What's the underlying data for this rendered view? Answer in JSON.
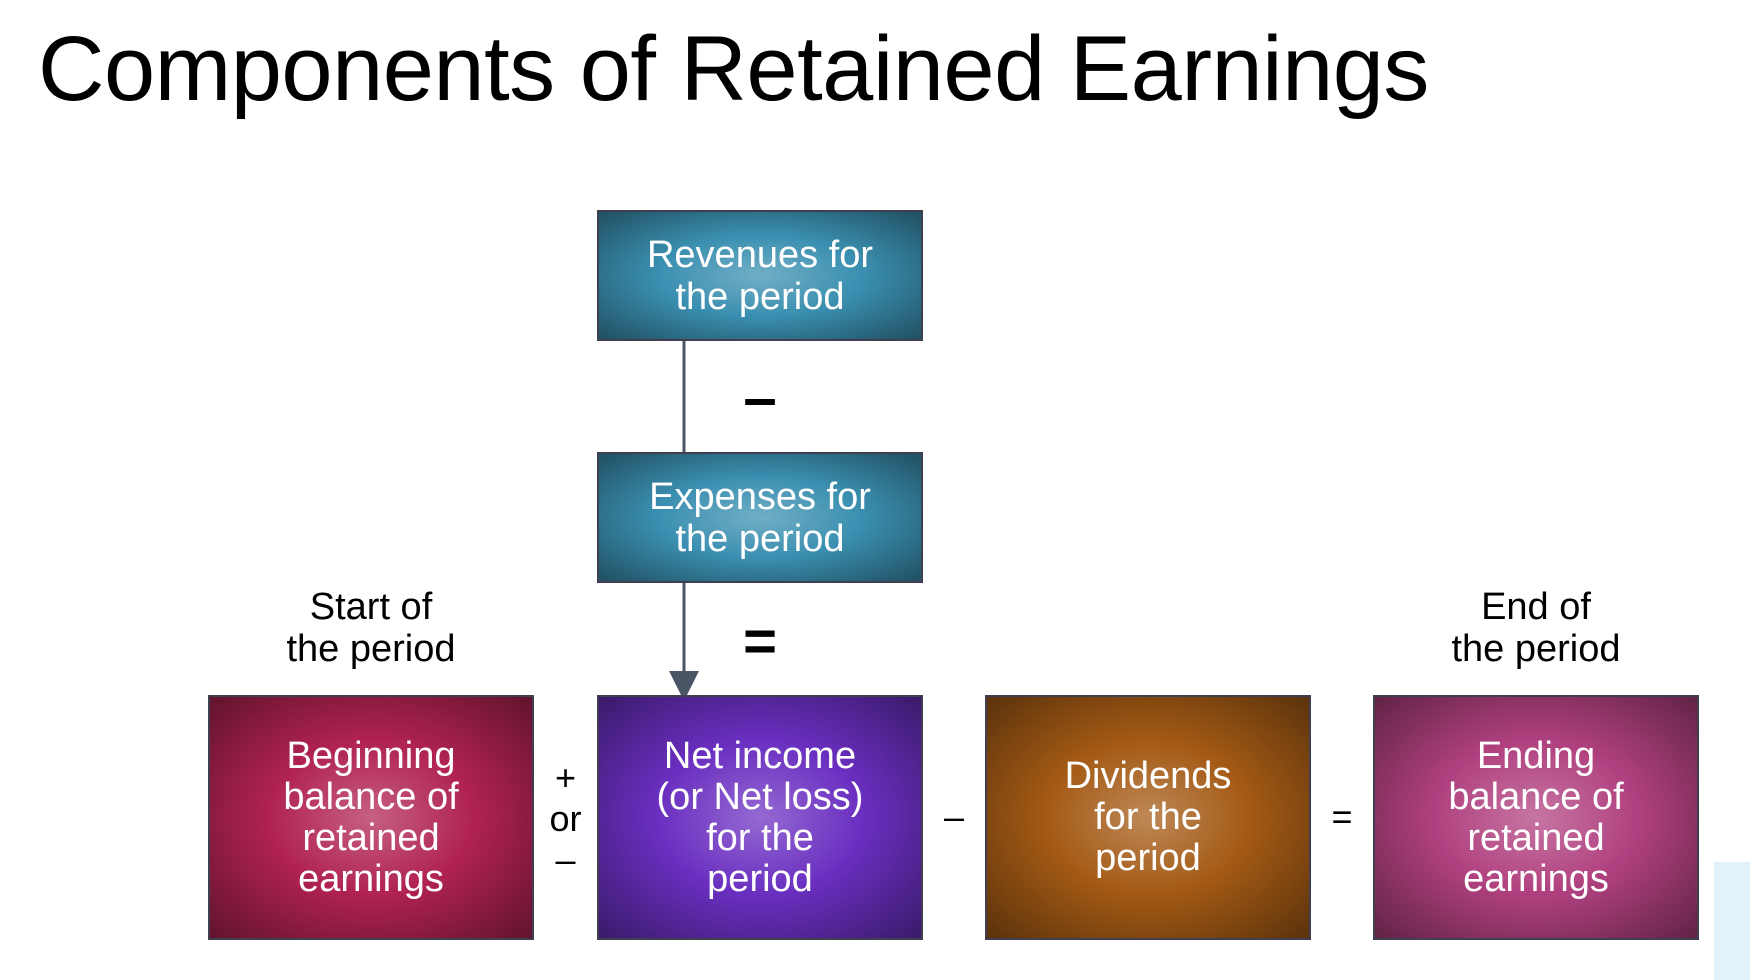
{
  "title": "Components of Retained Earnings",
  "boxes": {
    "revenues": "Revenues for\nthe period",
    "expenses": "Expenses for\nthe period",
    "beginning": "Beginning\nbalance of\nretained\nearnings",
    "net_income": "Net income\n(or Net loss)\nfor the\nperiod",
    "dividends": "Dividends\nfor the\nperiod",
    "ending": "Ending\nbalance of\nretained\nearnings"
  },
  "captions": {
    "start": "Start of\nthe period",
    "end": "End of\nthe period"
  },
  "operators": {
    "minus_vertical": "–",
    "equals_vertical": "=",
    "plus_or_minus": "+\nor\n–",
    "minus_horizontal": "–",
    "equals_horizontal": "="
  },
  "colors": {
    "revenues": "#3a8fb0",
    "expenses": "#3a8fb0",
    "beginning": "#b02252",
    "net_income": "#6a2fc0",
    "dividends": "#a45a14",
    "ending": "#b0407f",
    "connector": "#4a5566"
  }
}
